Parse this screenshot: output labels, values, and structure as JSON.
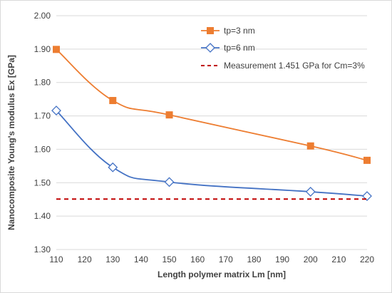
{
  "chart_data": {
    "type": "line",
    "title": "",
    "xlabel": "Length polymer matrix Lm [nm]",
    "ylabel": "Nanocomposite Young's modulus Ex [GPa]",
    "xlim": [
      110,
      220
    ],
    "ylim": [
      1.3,
      2.0
    ],
    "x_ticks": [
      110,
      120,
      130,
      140,
      150,
      160,
      170,
      180,
      190,
      200,
      210,
      220
    ],
    "y_ticks": [
      1.3,
      1.4,
      1.5,
      1.6,
      1.7,
      1.8,
      1.9,
      2.0
    ],
    "x_tick_labels": [
      "110",
      "120",
      "130",
      "140",
      "150",
      "160",
      "170",
      "180",
      "190",
      "200",
      "210",
      "220"
    ],
    "y_tick_labels": [
      "1.30",
      "1.40",
      "1.50",
      "1.60",
      "1.70",
      "1.80",
      "1.90",
      "2.00"
    ],
    "grid": "horizontal",
    "legend_position": "top-right",
    "series": [
      {
        "name": "tp=3 nm",
        "color": "#ed7d31",
        "marker": "square-filled",
        "x": [
          110,
          130,
          150,
          200,
          220
        ],
        "y": [
          1.899,
          1.746,
          1.703,
          1.61,
          1.567
        ]
      },
      {
        "name": "tp=6 nm",
        "color": "#4472c4",
        "marker": "diamond-open",
        "x": [
          110,
          130,
          150,
          200,
          220
        ],
        "y": [
          1.716,
          1.546,
          1.502,
          1.473,
          1.46
        ]
      },
      {
        "name": "Measurement 1.451 GPa for Cm=3%",
        "color": "#c00000",
        "style": "dashed",
        "x": [
          110,
          220
        ],
        "y": [
          1.451,
          1.451
        ]
      }
    ]
  }
}
